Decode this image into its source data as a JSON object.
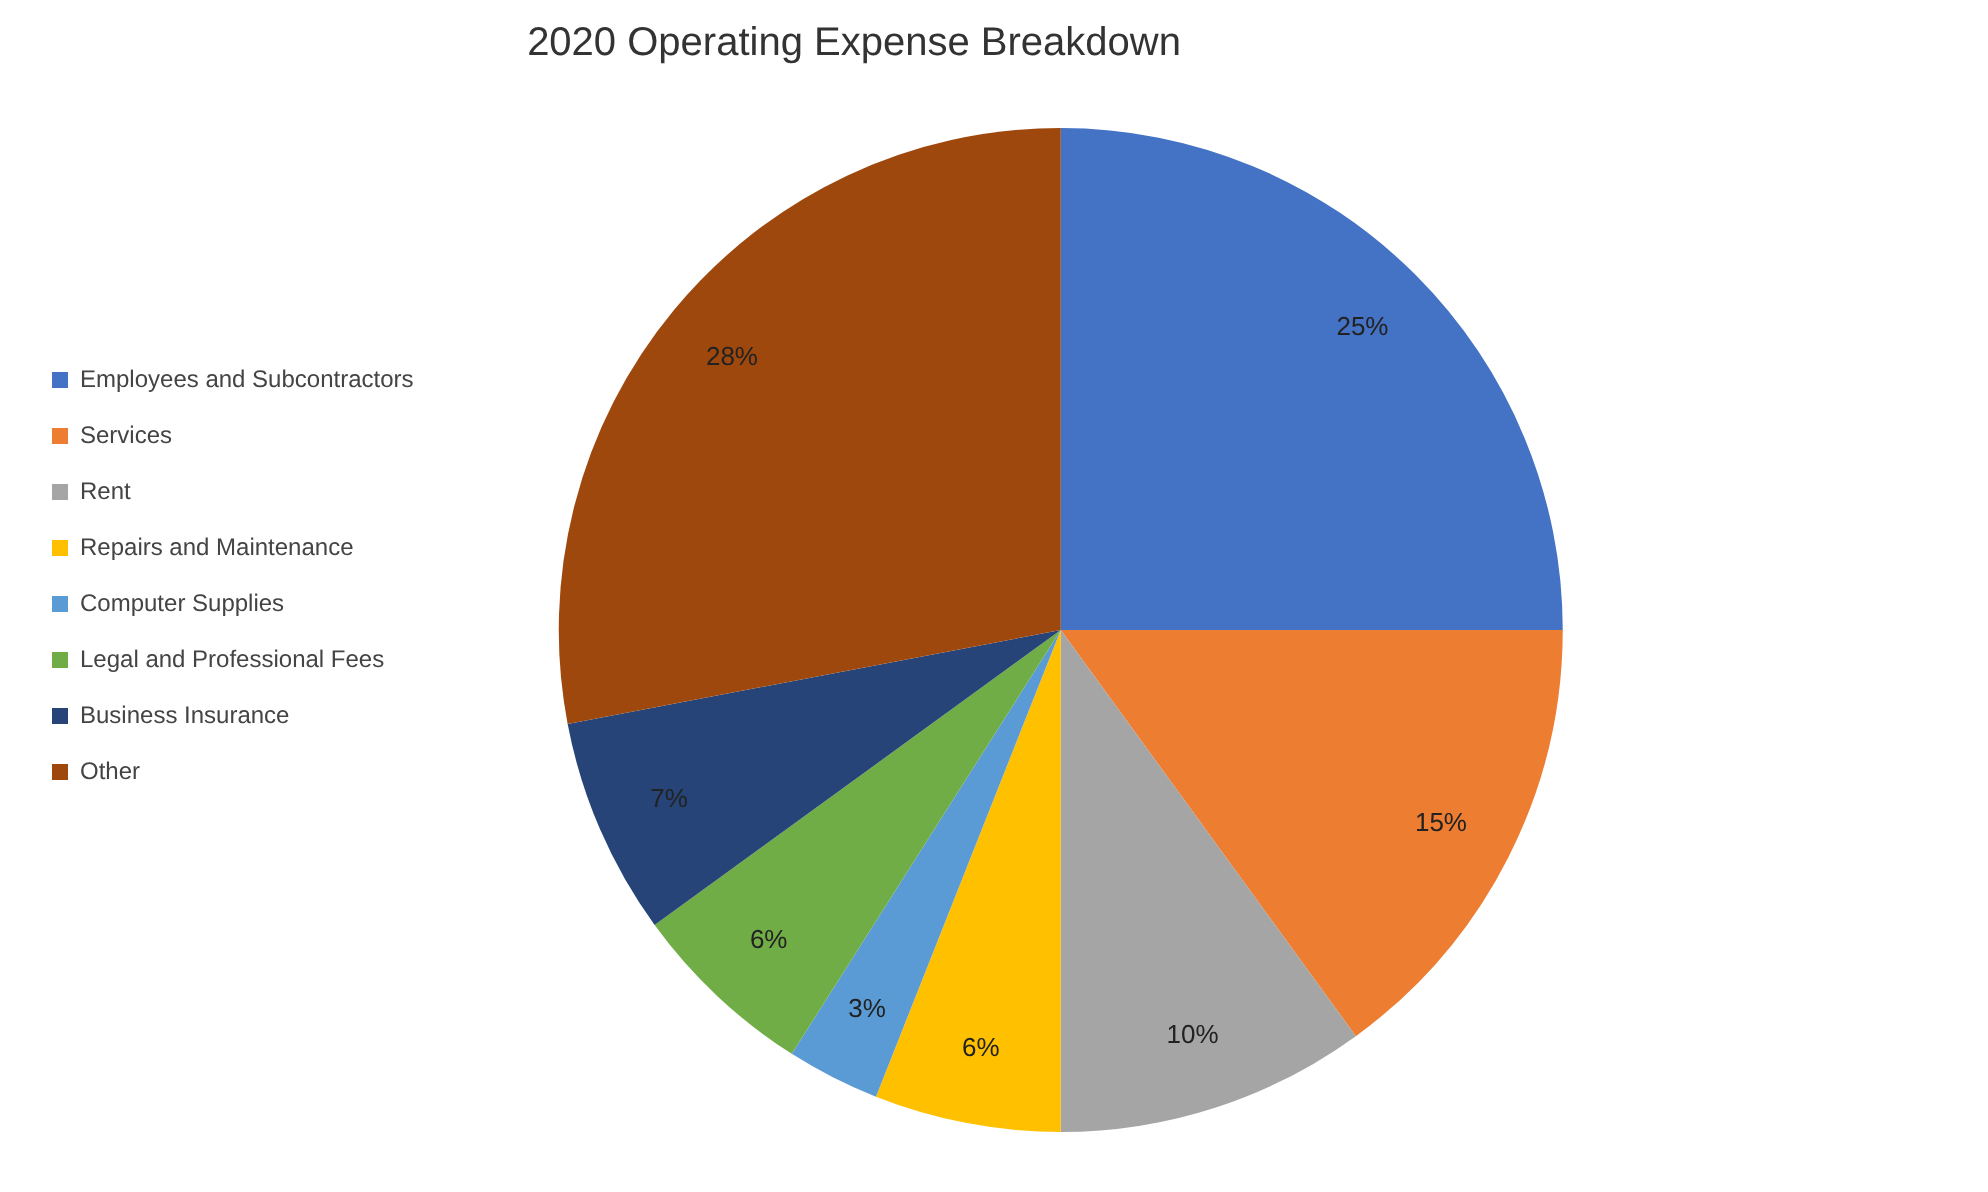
{
  "chart_data": {
    "type": "pie",
    "title": "2020 Operating Expense Breakdown",
    "categories": [
      "Employees and Subcontractors",
      "Services",
      "Rent",
      "Repairs and Maintenance",
      "Computer Supplies",
      "Legal and Professional Fees",
      "Business Insurance",
      "Other"
    ],
    "values": [
      25,
      15,
      10,
      6,
      3,
      6,
      7,
      28
    ],
    "colors": [
      "#4472c4",
      "#ed7d31",
      "#a5a5a5",
      "#ffc000",
      "#5b9bd5",
      "#70ad47",
      "#264478",
      "#9e480e"
    ],
    "value_labels": [
      "25%",
      "15%",
      "10%",
      "6%",
      "3%",
      "6%",
      "7%",
      "28%"
    ],
    "legend": "left"
  }
}
